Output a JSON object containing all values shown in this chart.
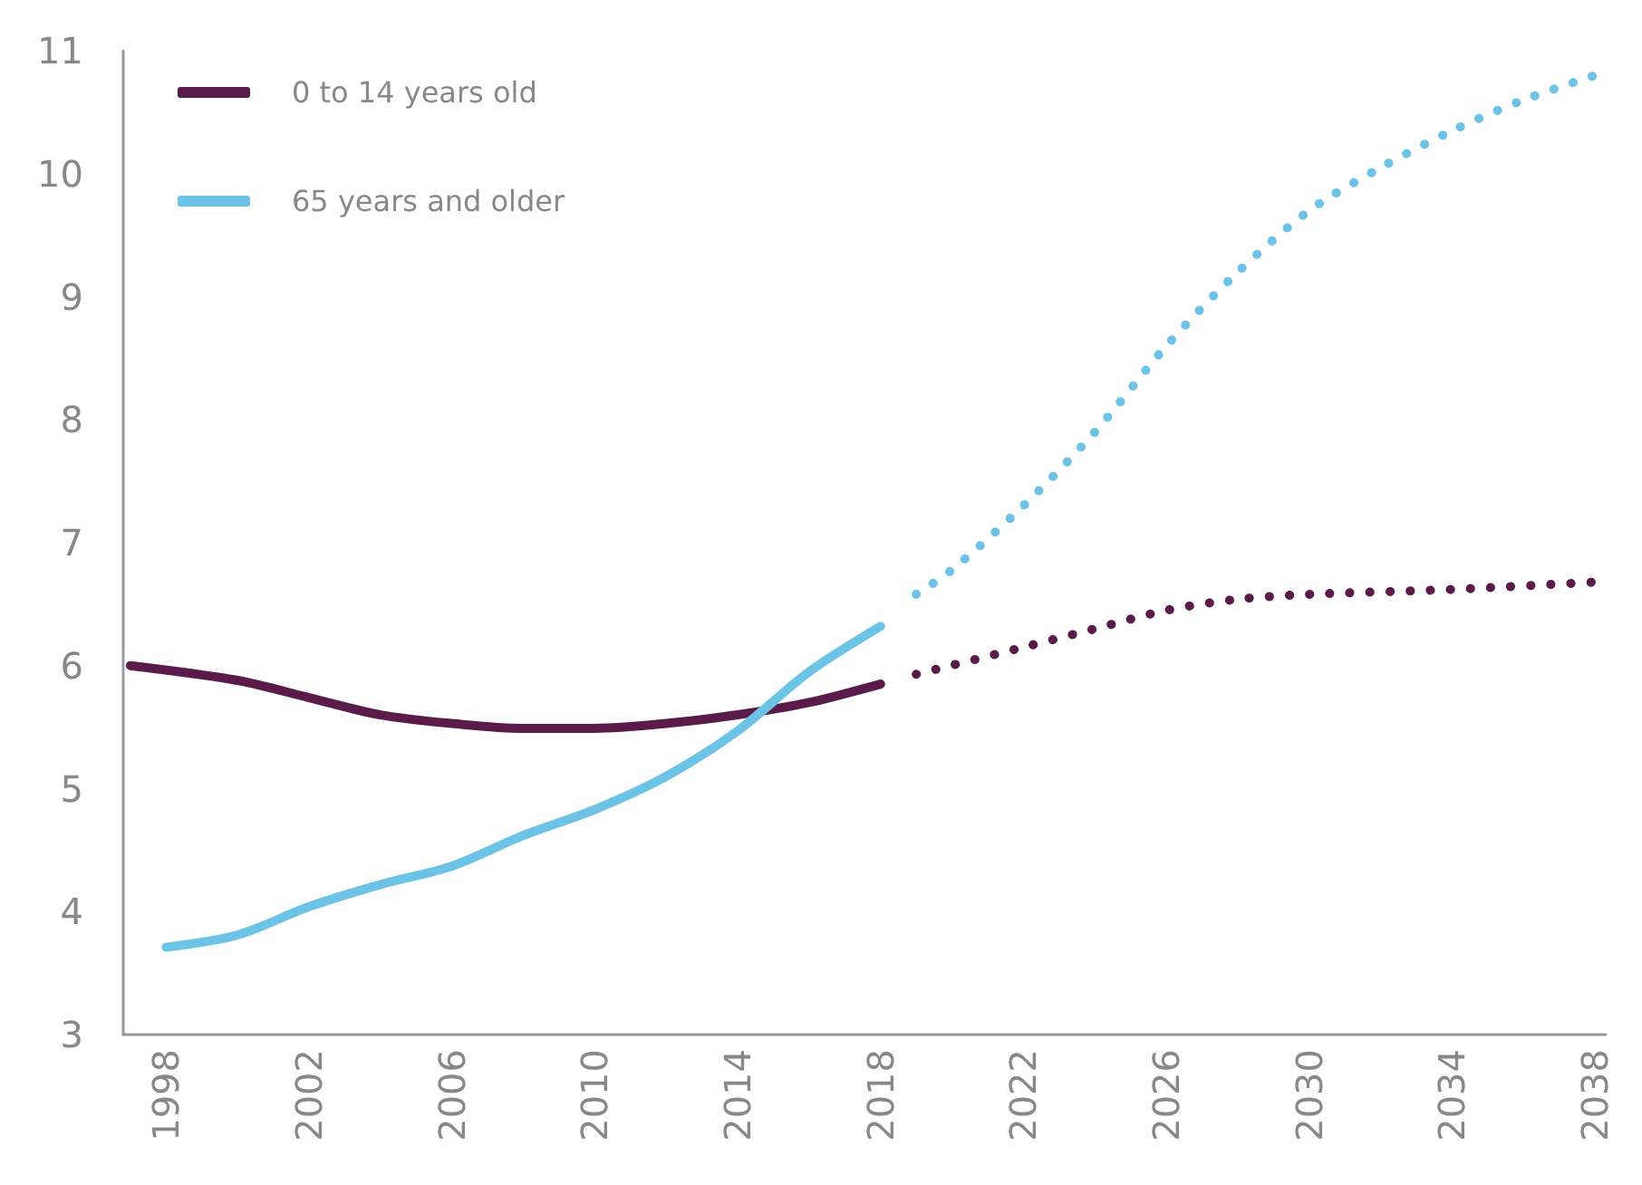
{
  "chart_data": {
    "type": "line",
    "xlim": [
      1996.8,
      2038.3
    ],
    "xticks": [
      1998,
      2002,
      2006,
      2010,
      2014,
      2018,
      2022,
      2026,
      2030,
      2034,
      2038
    ],
    "ylim": [
      3,
      11
    ],
    "yticks": [
      3,
      4,
      5,
      6,
      7,
      8,
      9,
      10,
      11
    ],
    "grid": false,
    "legend": "top left",
    "marker": "none",
    "series": [
      {
        "name": "0 to 14 years old",
        "color": "#5a1a4a",
        "line_style": "solid",
        "x": [
          1997,
          2000,
          2002,
          2004,
          2006,
          2008,
          2010,
          2012,
          2014,
          2016,
          2018
        ],
        "values": [
          6.0,
          5.88,
          5.74,
          5.6,
          5.53,
          5.49,
          5.49,
          5.53,
          5.6,
          5.7,
          5.85
        ]
      },
      {
        "name": "65 years and older",
        "color": "#6cc3e6",
        "line_style": "solid",
        "x": [
          1998,
          2000,
          2002,
          2004,
          2006,
          2008,
          2010,
          2012,
          2014,
          2016,
          2018
        ],
        "values": [
          3.71,
          3.81,
          4.04,
          4.22,
          4.37,
          4.62,
          4.83,
          5.1,
          5.47,
          5.95,
          6.32
        ]
      },
      {
        "color": "#5a1a4a",
        "line_style": "dotted",
        "x": [
          2019,
          2022,
          2024,
          2026,
          2028,
          2030,
          2034,
          2038
        ],
        "values": [
          5.93,
          6.15,
          6.3,
          6.45,
          6.54,
          6.58,
          6.62,
          6.68
        ]
      },
      {
        "color": "#6cc3e6",
        "line_style": "dotted",
        "x": [
          2019,
          2020,
          2022,
          2024,
          2026,
          2028,
          2030,
          2032,
          2034,
          2036,
          2038
        ],
        "values": [
          6.58,
          6.78,
          7.3,
          7.9,
          8.6,
          9.2,
          9.7,
          10.05,
          10.35,
          10.6,
          10.8
        ]
      }
    ]
  }
}
